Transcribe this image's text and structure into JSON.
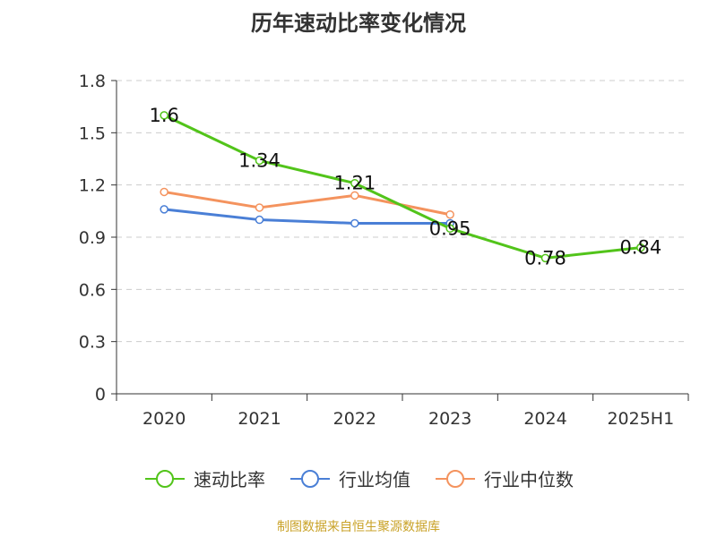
{
  "chart_data": {
    "type": "line",
    "title": "历年速动比率变化情况",
    "categories": [
      "2020",
      "2021",
      "2022",
      "2023",
      "2024",
      "2025H1"
    ],
    "ylim": [
      0,
      1.8
    ],
    "yticks": [
      "0",
      "0.3",
      "0.6",
      "0.9",
      "1.2",
      "1.5",
      "1.8"
    ],
    "grid": true,
    "legend_position": "bottom",
    "series": [
      {
        "name": "速动比率",
        "color": "#52c41a",
        "values": [
          1.6,
          1.34,
          1.21,
          0.95,
          0.78,
          0.84
        ],
        "labels": [
          "1.6",
          "1.34",
          "1.21",
          "0.95",
          "0.78",
          "0.84"
        ]
      },
      {
        "name": "行业均值",
        "color": "#4a7fd6",
        "values": [
          1.06,
          1.0,
          0.98,
          0.98,
          null,
          null
        ],
        "labels": []
      },
      {
        "name": "行业中位数",
        "color": "#f4935e",
        "values": [
          1.16,
          1.07,
          1.14,
          1.03,
          null,
          null
        ],
        "labels": []
      }
    ]
  },
  "footer": {
    "source": "制图数据来自恒生聚源数据库"
  }
}
